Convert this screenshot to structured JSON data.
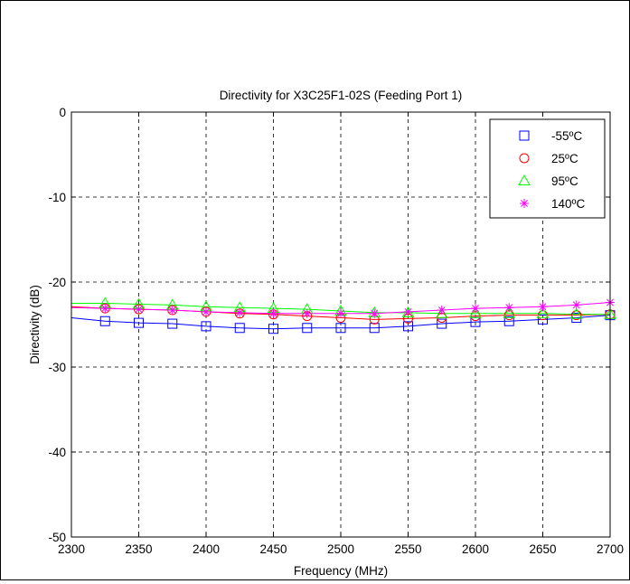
{
  "chart_data": {
    "type": "line",
    "title": "Directivity for X3C25F1-02S (Feeding Port 1)",
    "xlabel": "Frequency (MHz)",
    "ylabel": "Directivity (dB)",
    "xlim": [
      2300,
      2700
    ],
    "ylim": [
      -50,
      0
    ],
    "xticks": [
      2300,
      2350,
      2400,
      2450,
      2500,
      2550,
      2600,
      2650,
      2700
    ],
    "yticks": [
      0,
      -10,
      -20,
      -30,
      -40,
      -50
    ],
    "grid": true,
    "legend_position": "top-right",
    "x": [
      2300,
      2325,
      2350,
      2375,
      2400,
      2425,
      2450,
      2475,
      2500,
      2525,
      2550,
      2575,
      2600,
      2625,
      2650,
      2675,
      2700
    ],
    "series": [
      {
        "name": "-55ºC",
        "color": "#0000ff",
        "marker": "square",
        "values": [
          -24.2,
          -24.6,
          -24.8,
          -24.9,
          -25.2,
          -25.4,
          -25.5,
          -25.4,
          -25.4,
          -25.4,
          -25.2,
          -24.9,
          -24.7,
          -24.6,
          -24.4,
          -24.2,
          -23.9
        ]
      },
      {
        "name": "25ºC",
        "color": "#ff0000",
        "marker": "circle",
        "values": [
          -22.9,
          -23.1,
          -23.2,
          -23.3,
          -23.5,
          -23.7,
          -23.8,
          -24.0,
          -24.2,
          -24.4,
          -24.3,
          -24.2,
          -24.0,
          -23.9,
          -23.9,
          -23.9,
          -23.8
        ]
      },
      {
        "name": "95ºC",
        "color": "#00ff00",
        "marker": "triangle",
        "values": [
          -22.5,
          -22.5,
          -22.6,
          -22.7,
          -22.9,
          -23.0,
          -23.1,
          -23.2,
          -23.4,
          -23.6,
          -23.6,
          -23.7,
          -23.7,
          -23.7,
          -23.7,
          -23.8,
          -23.8
        ]
      },
      {
        "name": "140ºC",
        "color": "#ff00ff",
        "marker": "star",
        "values": [
          -23.0,
          -23.1,
          -23.2,
          -23.3,
          -23.5,
          -23.6,
          -23.7,
          -23.7,
          -23.7,
          -23.7,
          -23.5,
          -23.3,
          -23.1,
          -23.0,
          -22.9,
          -22.7,
          -22.4
        ]
      }
    ]
  }
}
